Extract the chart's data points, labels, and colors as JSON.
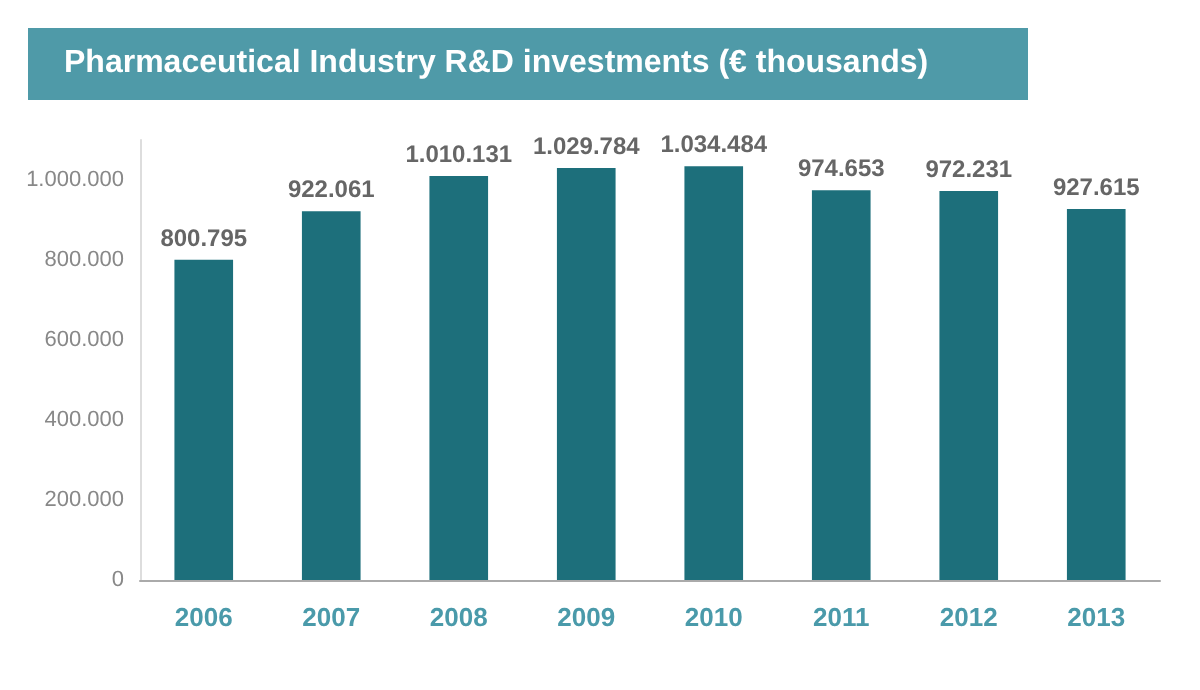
{
  "chart_data": {
    "type": "bar",
    "title": "Pharmaceutical Industry R&D investments (€ thousands)",
    "categories": [
      "2006",
      "2007",
      "2008",
      "2009",
      "2010",
      "2011",
      "2012",
      "2013"
    ],
    "values": [
      800795,
      922061,
      1010131,
      1029784,
      1034484,
      974653,
      972231,
      927615
    ],
    "color": "#1d6f7b",
    "ylim": [
      0,
      1100000
    ],
    "yticks": [
      {
        "value": 0,
        "label": "0"
      },
      {
        "value": 200000,
        "label": "200.000"
      },
      {
        "value": 400000,
        "label": "400.000"
      },
      {
        "value": 600000,
        "label": "600.000"
      },
      {
        "value": 800000,
        "label": "800.000"
      },
      {
        "value": 1000000,
        "label": "1.000.000"
      }
    ],
    "grid": false,
    "value_labels": [
      "800.795",
      "922.061",
      "1.010.131",
      "1.029.784",
      "1.034.484",
      "974.653",
      "972.231",
      "927.615"
    ]
  }
}
